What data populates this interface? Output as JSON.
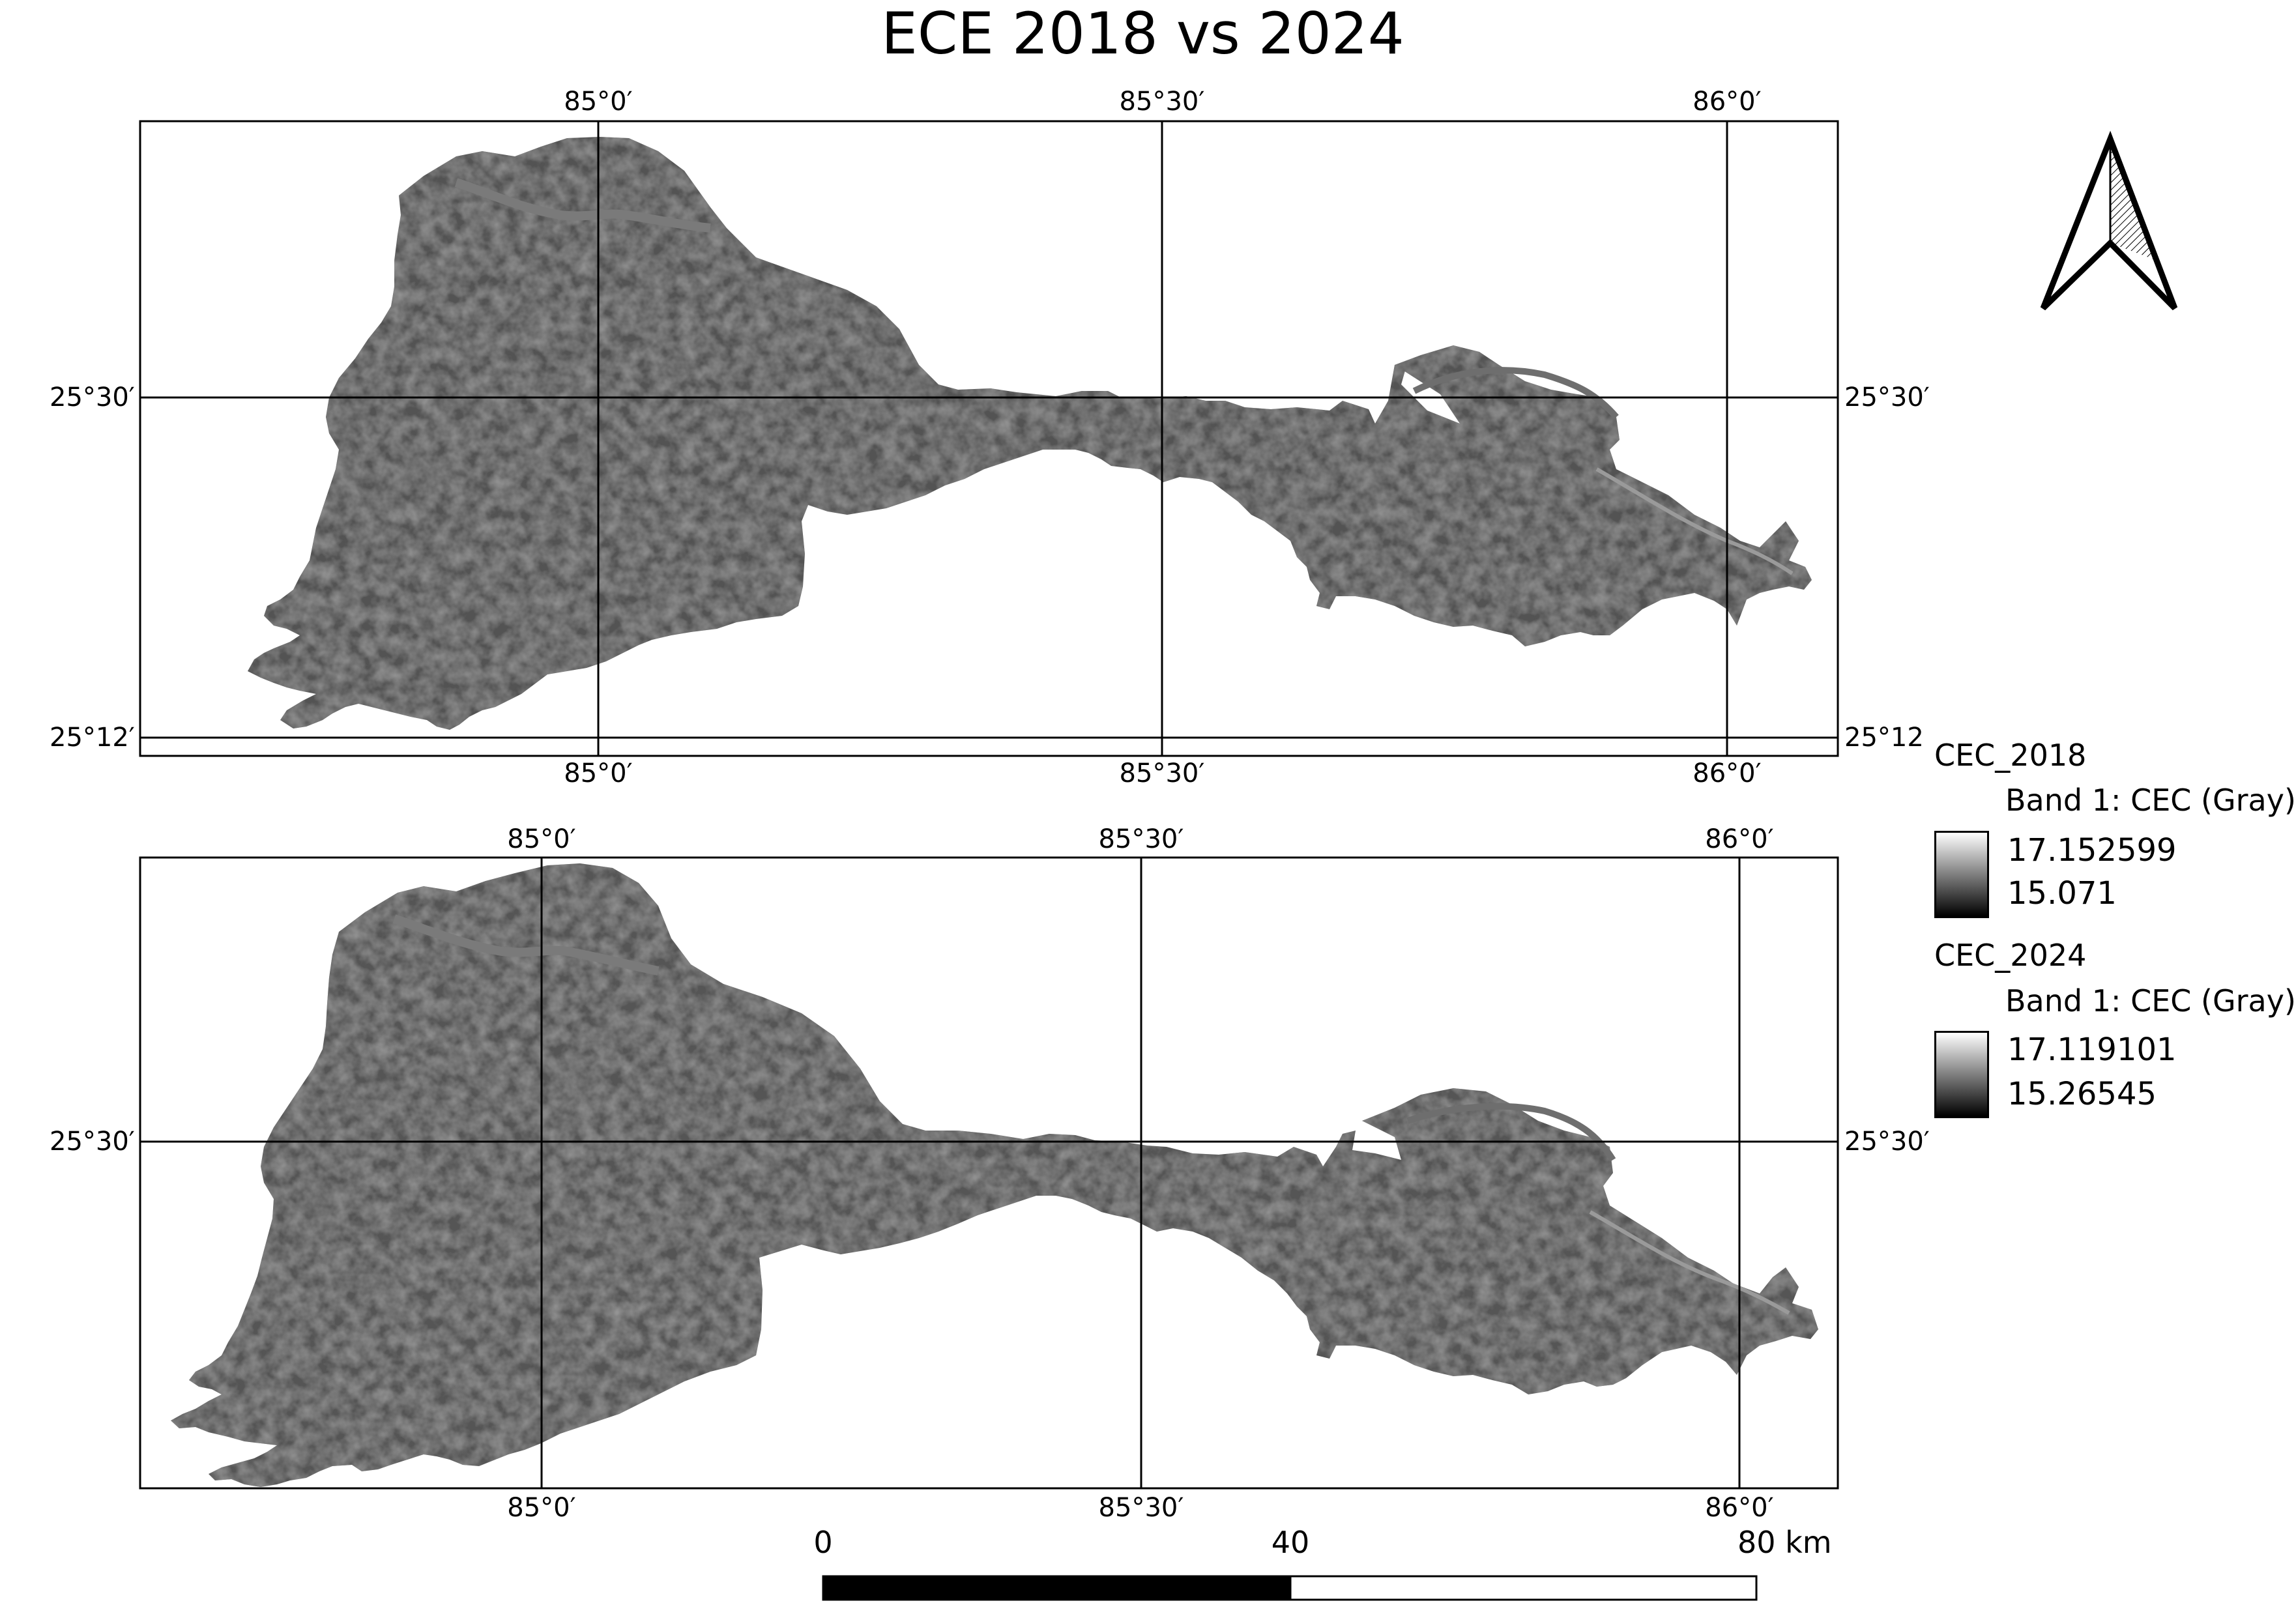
{
  "title": "ECE 2018 vs 2024",
  "map_top": {
    "top_labels": [
      "85°0′",
      "85°30′",
      "86°0′"
    ],
    "bottom_labels": [
      "85°0′",
      "85°30′",
      "86°0′"
    ],
    "left_labels": [
      "25°30′",
      "25°12′"
    ],
    "right_labels": [
      "25°30′",
      "25°12"
    ]
  },
  "map_bottom": {
    "top_labels": [
      "85°0′",
      "85°30′",
      "86°0′"
    ],
    "bottom_labels": [
      "85°0′",
      "85°30′",
      "86°0′"
    ],
    "left_labels": [
      "25°30′"
    ],
    "right_labels": [
      "25°30′"
    ]
  },
  "legend": [
    {
      "layer": "CEC_2018",
      "band": "Band 1: CEC (Gray)",
      "max": "17.152599",
      "min": "15.071"
    },
    {
      "layer": "CEC_2024",
      "band": "Band 1: CEC (Gray)",
      "max": "17.119101",
      "min": "15.26545"
    }
  ],
  "scale_bar": {
    "labels": [
      "0",
      "40",
      "80 km"
    ]
  },
  "colors": {
    "raster_fill": "#505050",
    "frame": "#000000"
  }
}
